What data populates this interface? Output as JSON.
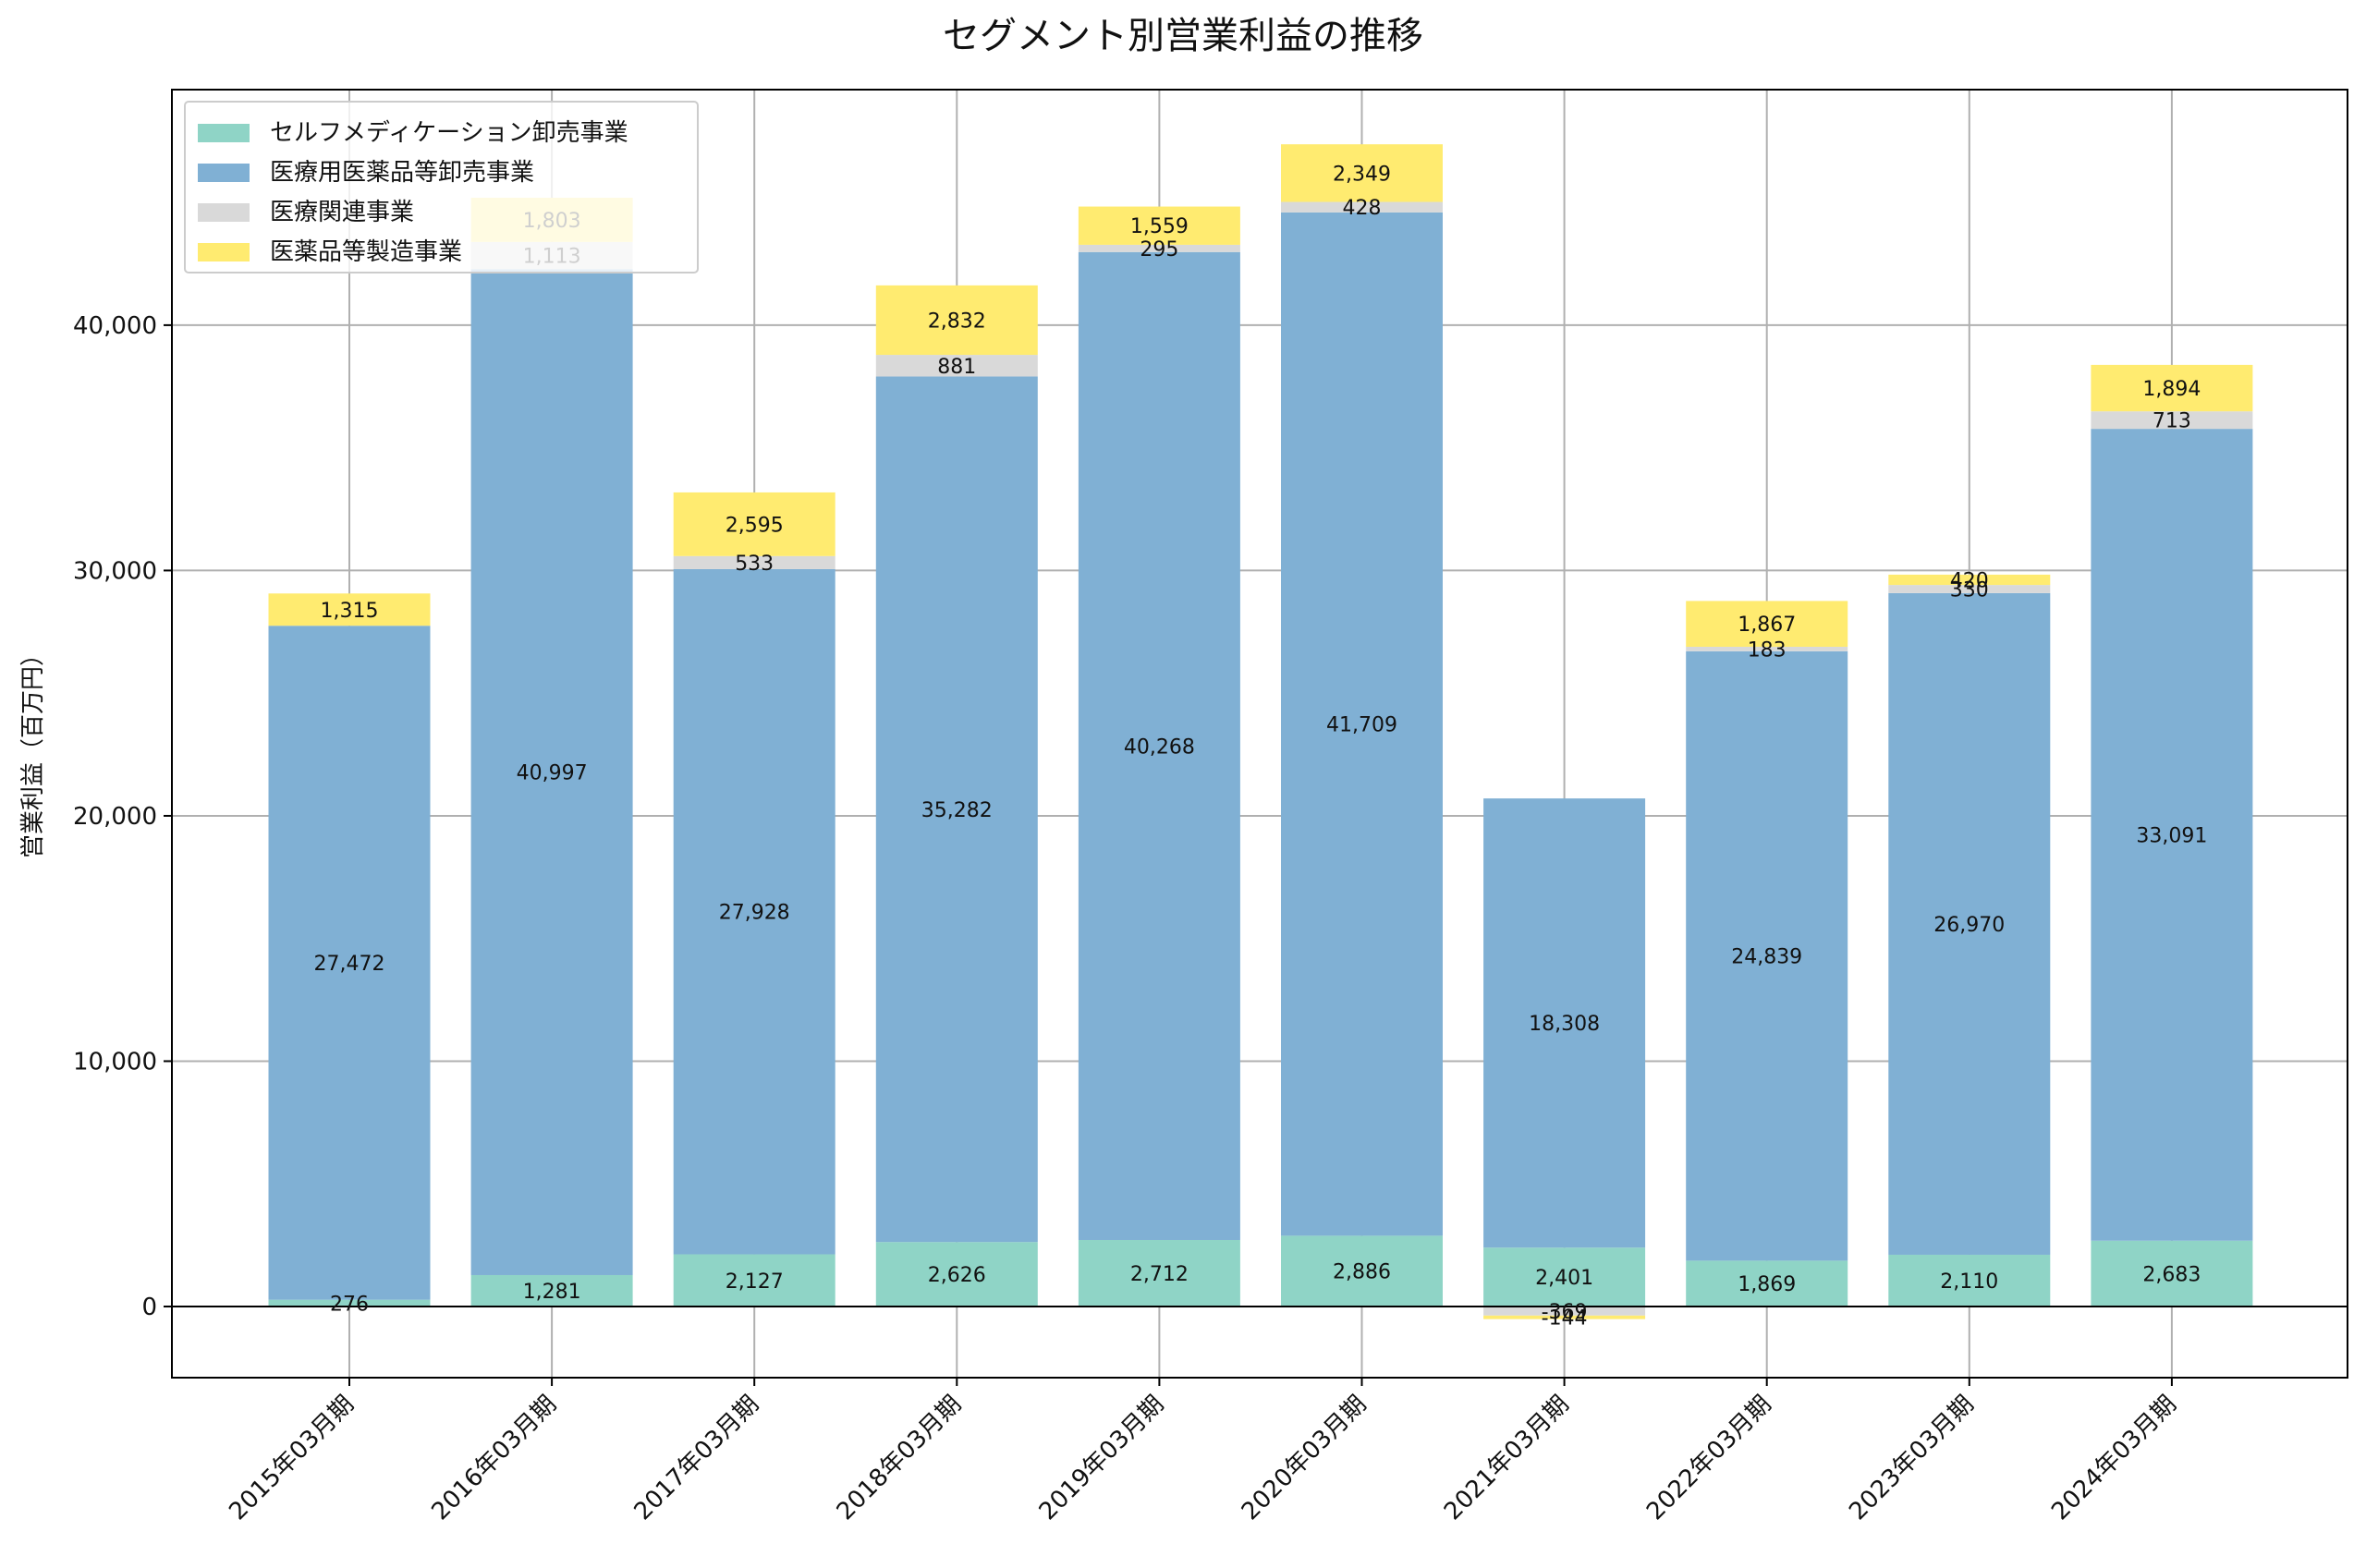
{
  "chart_data": {
    "type": "bar",
    "stacked": true,
    "title": "セグメント別営業利益の推移",
    "xlabel": "",
    "ylabel": "営業利益（百万円）",
    "ylim": [
      -2900,
      49600
    ],
    "yticks": [
      0,
      10000,
      20000,
      30000,
      40000
    ],
    "ytick_labels": [
      "0",
      "10,000",
      "20,000",
      "30,000",
      "40,000"
    ],
    "grid": true,
    "legend_position": "top-left",
    "categories": [
      "2015年03月期",
      "2016年03月期",
      "2017年03月期",
      "2018年03月期",
      "2019年03月期",
      "2020年03月期",
      "2021年03月期",
      "2022年03月期",
      "2023年03月期",
      "2024年03月期"
    ],
    "series": [
      {
        "name": "セルフメディケーション卸売事業",
        "color": "#8fd4c6",
        "values": [
          276,
          1281,
          2127,
          2626,
          2712,
          2886,
          2401,
          1869,
          2110,
          2683
        ],
        "labels": [
          "276",
          "1,281",
          "2,127",
          "2,626",
          "2,712",
          "2,886",
          "2,401",
          "1,869",
          "2,110",
          "2,683"
        ]
      },
      {
        "name": "医療用医薬品等卸売事業",
        "color": "#80b0d4",
        "values": [
          27472,
          40997,
          27928,
          35282,
          40268,
          41709,
          18308,
          24839,
          26970,
          33091
        ],
        "labels": [
          "27,472",
          "40,997",
          "27,928",
          "35,282",
          "40,268",
          "41,709",
          "18,308",
          "24,839",
          "26,970",
          "33,091"
        ]
      },
      {
        "name": "医療関連事業",
        "color": "#d9d9d9",
        "values": [
          0,
          1113,
          533,
          881,
          295,
          428,
          -369,
          183,
          330,
          713
        ],
        "labels": [
          "",
          "1,113",
          "533",
          "881",
          "295",
          "428",
          "-369",
          "183",
          "330",
          "713"
        ]
      },
      {
        "name": "医薬品等製造事業",
        "color": "#ffeb70",
        "values": [
          1315,
          1803,
          2595,
          2832,
          1559,
          2349,
          -144,
          1867,
          420,
          1894
        ],
        "labels": [
          "1,315",
          "1,803",
          "2,595",
          "2,832",
          "1,559",
          "2,349",
          "-144",
          "1,867",
          "420",
          "1,894"
        ]
      }
    ]
  }
}
